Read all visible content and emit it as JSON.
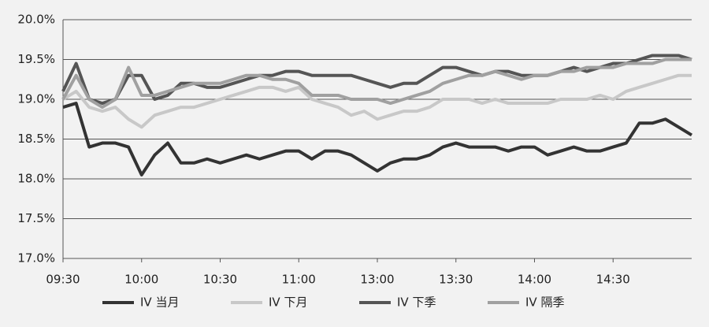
{
  "chart_data": {
    "type": "line",
    "categories": [
      "09:30",
      null,
      null,
      null,
      null,
      null,
      "10:00",
      null,
      null,
      null,
      null,
      null,
      "10:30",
      null,
      null,
      null,
      null,
      null,
      "11:00",
      null,
      null,
      null,
      null,
      null,
      "13:00",
      null,
      null,
      null,
      null,
      null,
      "13:30",
      null,
      null,
      null,
      null,
      null,
      "14:00",
      null,
      null,
      null,
      null,
      null,
      "14:30",
      null,
      null,
      null,
      null,
      null,
      null
    ],
    "series": [
      {
        "name": "IV 当月",
        "color": "#333333",
        "values": [
          18.9,
          18.95,
          18.4,
          18.45,
          18.45,
          18.4,
          18.05,
          18.3,
          18.45,
          18.2,
          18.2,
          18.25,
          18.2,
          18.25,
          18.3,
          18.25,
          18.3,
          18.35,
          18.35,
          18.25,
          18.35,
          18.35,
          18.3,
          18.2,
          18.1,
          18.2,
          18.25,
          18.25,
          18.3,
          18.4,
          18.45,
          18.4,
          18.4,
          18.4,
          18.35,
          18.4,
          18.4,
          18.3,
          18.35,
          18.4,
          18.35,
          18.35,
          18.4,
          18.45,
          18.7,
          18.7,
          18.75,
          18.65,
          18.55
        ]
      },
      {
        "name": "IV 下月",
        "color": "#c8c8c8",
        "values": [
          19.0,
          19.1,
          18.9,
          18.85,
          18.9,
          18.75,
          18.65,
          18.8,
          18.85,
          18.9,
          18.9,
          18.95,
          19.0,
          19.05,
          19.1,
          19.15,
          19.15,
          19.1,
          19.15,
          19.0,
          18.95,
          18.9,
          18.8,
          18.85,
          18.75,
          18.8,
          18.85,
          18.85,
          18.9,
          19.0,
          19.0,
          19.0,
          18.95,
          19.0,
          18.95,
          18.95,
          18.95,
          18.95,
          19.0,
          19.0,
          19.0,
          19.05,
          19.0,
          19.1,
          19.15,
          19.2,
          19.25,
          19.3,
          19.3
        ]
      },
      {
        "name": "IV 下季",
        "color": "#555555",
        "values": [
          19.1,
          19.45,
          19.0,
          18.95,
          19.0,
          19.3,
          19.3,
          19.0,
          19.05,
          19.2,
          19.2,
          19.15,
          19.15,
          19.2,
          19.25,
          19.3,
          19.3,
          19.35,
          19.35,
          19.3,
          19.3,
          19.3,
          19.3,
          19.25,
          19.2,
          19.15,
          19.2,
          19.2,
          19.3,
          19.4,
          19.4,
          19.35,
          19.3,
          19.35,
          19.35,
          19.3,
          19.3,
          19.3,
          19.35,
          19.4,
          19.35,
          19.4,
          19.45,
          19.45,
          19.5,
          19.55,
          19.55,
          19.55,
          19.5
        ]
      },
      {
        "name": "IV 隔季",
        "color": "#a0a0a0",
        "values": [
          19.0,
          19.3,
          19.0,
          18.9,
          19.0,
          19.4,
          19.05,
          19.05,
          19.1,
          19.15,
          19.2,
          19.2,
          19.2,
          19.25,
          19.3,
          19.3,
          19.25,
          19.25,
          19.2,
          19.05,
          19.05,
          19.05,
          19.0,
          19.0,
          19.0,
          18.95,
          19.0,
          19.05,
          19.1,
          19.2,
          19.25,
          19.3,
          19.3,
          19.35,
          19.3,
          19.25,
          19.3,
          19.3,
          19.35,
          19.35,
          19.4,
          19.4,
          19.4,
          19.45,
          19.45,
          19.45,
          19.5,
          19.5,
          19.5
        ]
      }
    ],
    "ylim": [
      17.0,
      20.0
    ],
    "yticks": [
      {
        "value": 17.0,
        "label": "17.0%"
      },
      {
        "value": 17.5,
        "label": "17.5%"
      },
      {
        "value": 18.0,
        "label": "18.0%"
      },
      {
        "value": 18.5,
        "label": "18.5%"
      },
      {
        "value": 19.0,
        "label": "19.0%"
      },
      {
        "value": 19.5,
        "label": "19.5%"
      },
      {
        "value": 20.0,
        "label": "20.0%"
      }
    ],
    "grid": true
  }
}
